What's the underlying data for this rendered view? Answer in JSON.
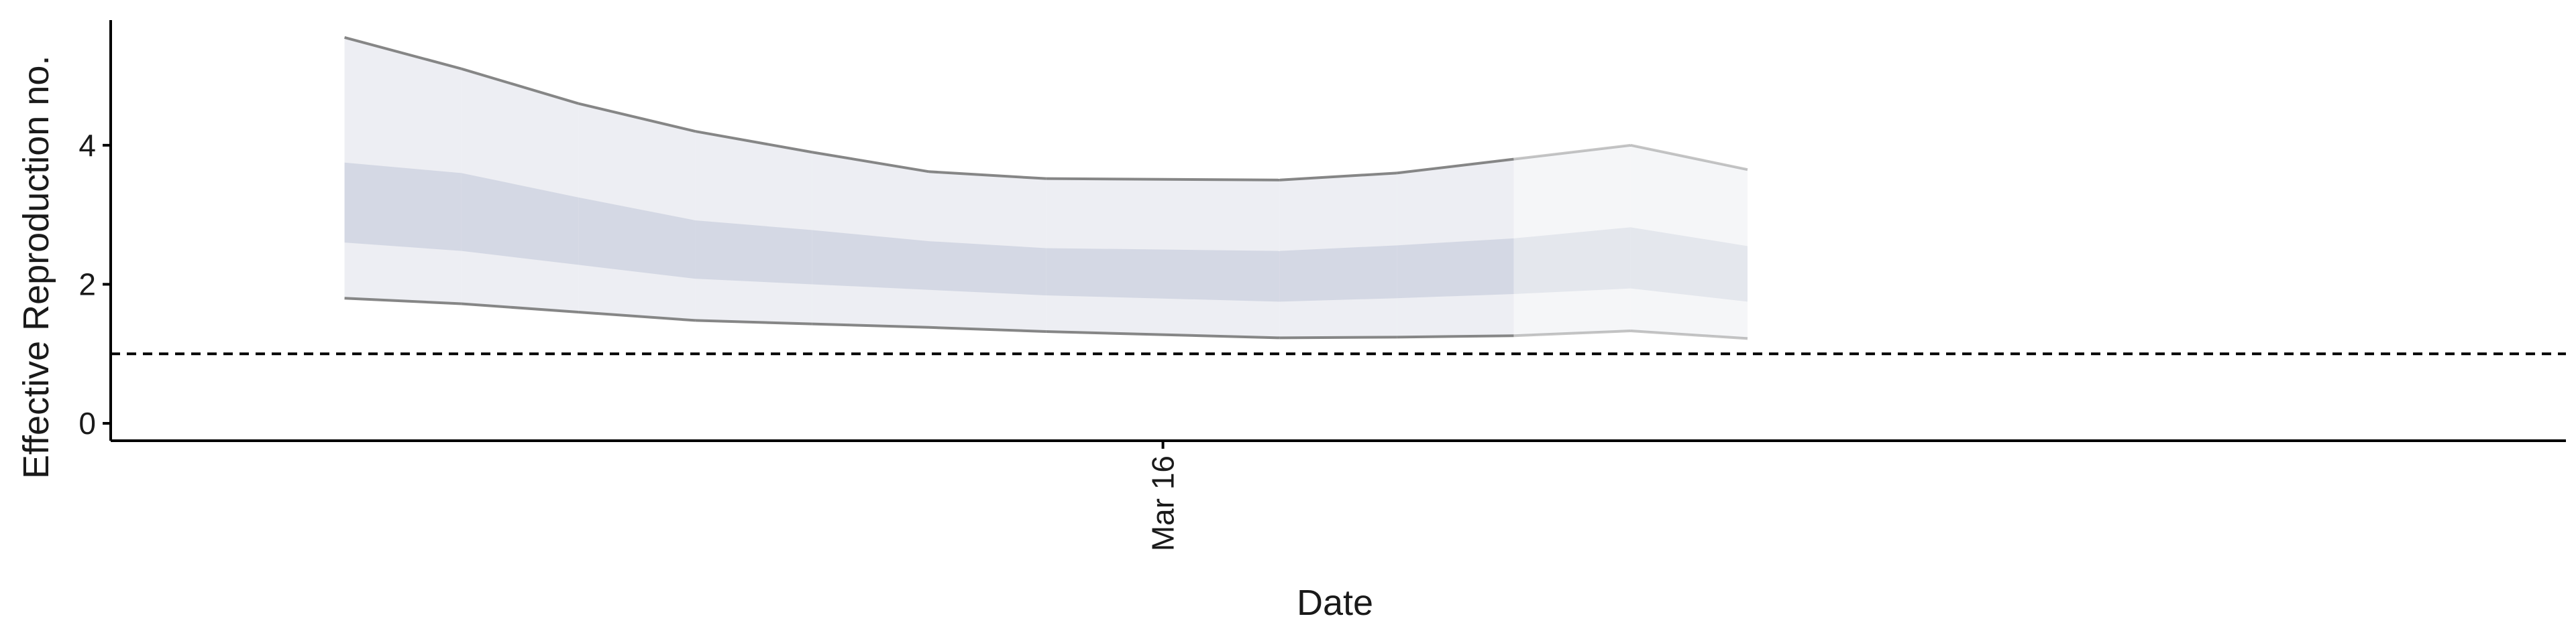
{
  "chart_data": {
    "type": "area",
    "title": "",
    "xlabel": "Date",
    "ylabel": "Effective Reproduction no.",
    "x_ticks": [
      {
        "date": "2020-03-16",
        "label": "Mar 16"
      }
    ],
    "y_ticks": [
      0,
      2,
      4
    ],
    "ylim": [
      -0.25,
      5.8
    ],
    "xlim": [
      "2020-03-07",
      "2020-03-28"
    ],
    "reference_line": {
      "y": 1,
      "style": "dashed"
    },
    "legend": "none",
    "grid": false,
    "colors": {
      "outer_band": "#e9eaf0",
      "inner_band": "#c6ccdb",
      "bound_line": "#7f7f7f",
      "axis": "#000000"
    },
    "series": [
      {
        "dates": [
          "2020-03-09",
          "2020-03-10",
          "2020-03-11",
          "2020-03-12",
          "2020-03-13",
          "2020-03-14",
          "2020-03-15",
          "2020-03-16",
          "2020-03-17",
          "2020-03-18",
          "2020-03-19",
          "2020-03-20",
          "2020-03-21",
          "2020-03-22"
        ],
        "lower_90": [
          1.8,
          1.72,
          1.6,
          1.48,
          1.43,
          1.38,
          1.32,
          1.23,
          1.24,
          1.26,
          1.33,
          1.22
        ],
        "lower_50": [
          2.6,
          2.48,
          2.28,
          2.08,
          2.0,
          1.92,
          1.84,
          1.75,
          1.8,
          1.86,
          1.94,
          1.75
        ],
        "upper_50": [
          3.75,
          3.6,
          3.25,
          2.92,
          2.78,
          2.62,
          2.52,
          2.48,
          2.56,
          2.66,
          2.82,
          2.55
        ],
        "upper_90": [
          5.55,
          5.1,
          4.6,
          4.2,
          3.9,
          3.62,
          3.52,
          3.5,
          3.6,
          3.8,
          4.0,
          3.65
        ],
        "forecast_start": "2020-03-19",
        "dates_used": [
          "2020-03-09",
          "2020-03-10",
          "2020-03-11",
          "2020-03-12",
          "2020-03-13",
          "2020-03-14",
          "2020-03-15",
          "2020-03-17",
          "2020-03-18",
          "2020-03-19",
          "2020-03-20",
          "2020-03-21"
        ]
      }
    ]
  }
}
